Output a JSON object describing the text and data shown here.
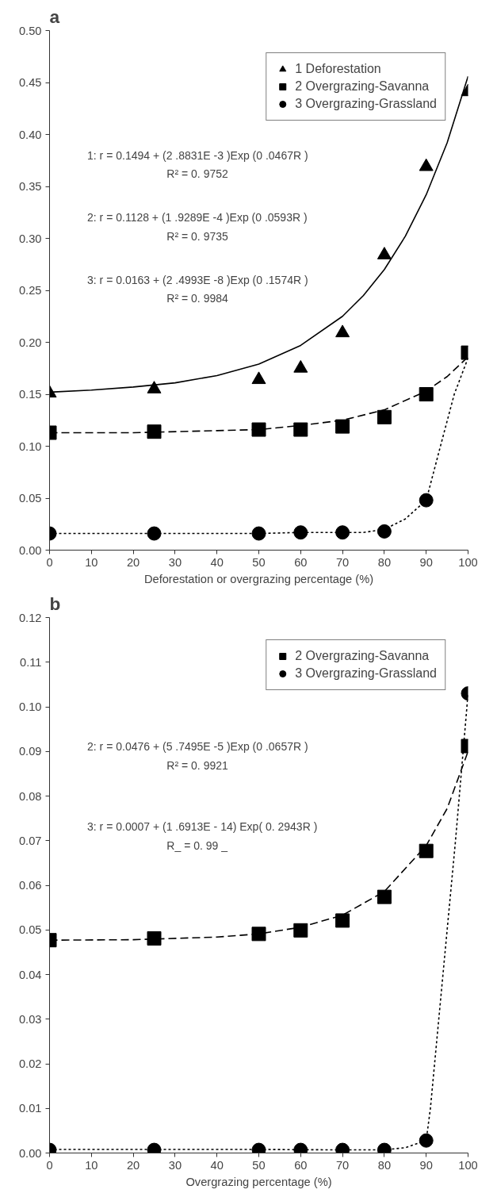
{
  "chart_data": [
    {
      "type": "scatter",
      "title": "a",
      "xlabel": "Deforestation or overgrazing percentage (%)",
      "x": [
        0,
        25,
        50,
        60,
        70,
        80,
        90,
        100
      ],
      "series": [
        {
          "name": "1 Deforestation",
          "marker": "triangle",
          "color": "#000000",
          "values": [
            0.151,
            0.155,
            0.164,
            0.175,
            0.209,
            0.284,
            0.369,
            0.441
          ]
        },
        {
          "name": "2 Overgrazing-Savanna",
          "marker": "square",
          "color": "#000000",
          "values": [
            0.113,
            0.114,
            0.116,
            0.116,
            0.119,
            0.128,
            0.15,
            0.19
          ]
        },
        {
          "name": "3 Overgrazing-Grassland",
          "marker": "circle",
          "color": "#000000",
          "values": [
            0.016,
            0.016,
            0.016,
            0.017,
            0.017,
            0.018,
            0.048,
            null
          ]
        },
        {
          "type": "line",
          "line_style": "solid",
          "color": "#000000",
          "x": [
            0,
            10,
            20,
            30,
            40,
            50,
            60,
            70,
            75,
            80,
            85,
            90,
            95,
            100
          ],
          "values": [
            0.152,
            0.154,
            0.157,
            0.161,
            0.168,
            0.179,
            0.197,
            0.225,
            0.245,
            0.27,
            0.302,
            0.342,
            0.392,
            0.456
          ]
        },
        {
          "type": "line",
          "line_style": "dashed",
          "color": "#000000",
          "x": [
            0,
            20,
            40,
            50,
            60,
            70,
            80,
            90,
            95,
            100
          ],
          "values": [
            0.113,
            0.113,
            0.115,
            0.116,
            0.12,
            0.125,
            0.135,
            0.153,
            0.167,
            0.186
          ]
        },
        {
          "type": "line",
          "line_style": "dotted",
          "color": "#000000",
          "x": [
            0,
            50,
            60,
            70,
            75,
            80,
            85,
            90,
            93.4,
            96.7,
            100
          ],
          "values": [
            0.016,
            0.016,
            0.017,
            0.017,
            0.017,
            0.02,
            0.03,
            0.048,
            0.1,
            0.15,
            0.185
          ]
        }
      ],
      "xlim": [
        0,
        100
      ],
      "xticks": [
        0,
        10,
        20,
        30,
        40,
        50,
        60,
        70,
        80,
        90,
        100
      ],
      "ylim": [
        0,
        0.5
      ],
      "yticks": [
        {
          "value": 0,
          "label": "0.00"
        },
        {
          "value": 0.05,
          "label": "0.05"
        },
        {
          "value": 0.1,
          "label": "0.10"
        },
        {
          "value": 0.15,
          "label": "0.15"
        },
        {
          "value": 0.2,
          "label": "0.20"
        },
        {
          "value": 0.25,
          "label": "0.25"
        },
        {
          "value": 0.3,
          "label": "0.30"
        },
        {
          "value": 0.35,
          "label": "0.35"
        },
        {
          "value": 0.4,
          "label": "0.40"
        },
        {
          "value": 0.45,
          "label": "0.45"
        },
        {
          "value": 0.5,
          "label": "0.50"
        }
      ],
      "annotations": [
        "1: r = 0.1494  +  (2 .8831E -3 )Exp (0 .0467R )",
        "R² =  0. 9752",
        "2: r = 0.1128  +  (1 .9289E -4 )Exp (0 .0593R )",
        "R² =  0. 9735",
        "3: r = 0.0163  +  (2 .4993E -8 )Exp (0 .1574R )",
        "R² =  0. 9984"
      ],
      "grid": false,
      "legend": "top right"
    },
    {
      "type": "scatter",
      "title": "b",
      "xlabel": "Overgrazing percentage (%)",
      "x": [
        0,
        25,
        50,
        60,
        70,
        80,
        90,
        100
      ],
      "series": [
        {
          "name": "2 Overgrazing-Savanna",
          "marker": "square",
          "color": "#000000",
          "values": [
            0.0477,
            0.0481,
            0.0491,
            0.0499,
            0.0521,
            0.0574,
            0.0677,
            0.0912
          ]
        },
        {
          "name": "3 Overgrazing-Grassland",
          "marker": "circle",
          "color": "#000000",
          "values": [
            0.0007,
            0.0007,
            0.0007,
            0.0007,
            0.0007,
            0.0007,
            0.0028,
            0.103
          ]
        },
        {
          "type": "line",
          "line_style": "dashed",
          "color": "#000000",
          "x": [
            0,
            20,
            40,
            50,
            60,
            70,
            80,
            90,
            95,
            100
          ],
          "values": [
            0.0477,
            0.0478,
            0.0484,
            0.0491,
            0.0506,
            0.0533,
            0.0586,
            0.0689,
            0.0772,
            0.09
          ]
        },
        {
          "type": "line",
          "line_style": "dotted",
          "color": "#000000",
          "x": [
            0,
            50,
            70,
            80,
            85,
            90,
            91,
            94,
            97,
            100
          ],
          "values": [
            0.0008,
            0.0008,
            0.0007,
            0.0007,
            0.0012,
            0.0028,
            0.01,
            0.04,
            0.07,
            0.103
          ]
        }
      ],
      "xlim": [
        0,
        100
      ],
      "xticks": [
        0,
        10,
        20,
        30,
        40,
        50,
        60,
        70,
        80,
        90,
        100
      ],
      "ylim": [
        0,
        0.12
      ],
      "yticks": [
        {
          "value": 0,
          "label": "0.00"
        },
        {
          "value": 0.01,
          "label": "0.01"
        },
        {
          "value": 0.02,
          "label": "0.02"
        },
        {
          "value": 0.03,
          "label": "0.03"
        },
        {
          "value": 0.04,
          "label": "0.04"
        },
        {
          "value": 0.05,
          "label": "0.05"
        },
        {
          "value": 0.06,
          "label": "0.06"
        },
        {
          "value": 0.07,
          "label": "0.07"
        },
        {
          "value": 0.08,
          "label": "0.08"
        },
        {
          "value": 0.09,
          "label": "0.09"
        },
        {
          "value": 0.1,
          "label": "0.10"
        },
        {
          "value": 0.11,
          "label": "0.11"
        },
        {
          "value": 0.12,
          "label": "0.12"
        }
      ],
      "annotations": [
        "2:  r = 0.0476  +  (5 .7495E -5 )Exp (0 .0657R )",
        "R² =  0. 9921",
        "3:  r = 0.0007  +  (1 .6913E - 14) Exp( 0. 2943R )",
        "R_  =  0. 99  _"
      ],
      "grid": false,
      "legend": "top right"
    }
  ]
}
